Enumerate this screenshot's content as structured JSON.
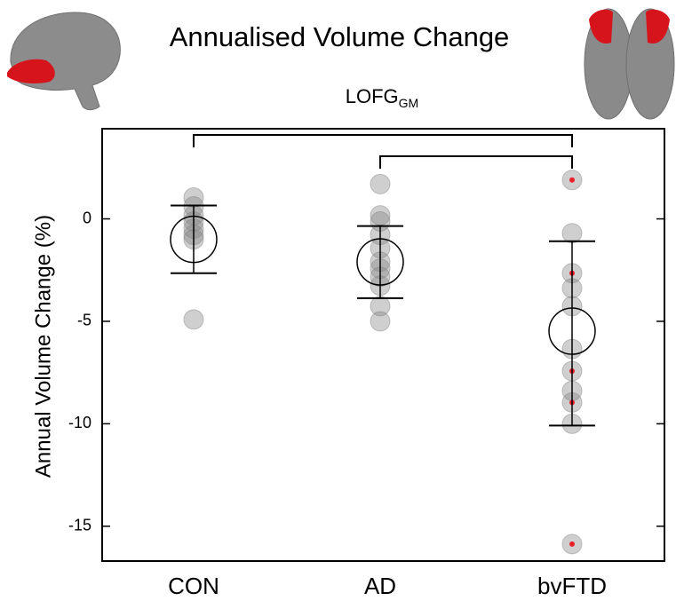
{
  "chart_data": {
    "type": "strip",
    "title": "Annualised Volume Change",
    "subtitle": {
      "text": "LOFG",
      "subscript": "GM"
    },
    "y_label": "Annual Volume Change (%)",
    "categories": [
      "CON",
      "AD",
      "bvFTD"
    ],
    "points": [
      [
        1.04,
        0.61,
        0.17,
        -0.13,
        -0.48,
        -0.78,
        -1.0,
        -4.91
      ],
      [
        1.7,
        0.17,
        -0.13,
        -0.78,
        -1.43,
        -2.09,
        -2.43,
        -2.83,
        -3.26,
        -4.26,
        -5.0
      ],
      [
        1.9,
        -0.7,
        -2.65,
        -3.39,
        -4.26,
        -6.35,
        -7.43,
        -8.39,
        -8.96,
        -10.0,
        -15.87
      ]
    ],
    "highlight": [
      [
        false,
        false,
        false,
        false,
        false,
        false,
        false,
        false
      ],
      [
        false,
        false,
        false,
        false,
        false,
        false,
        false,
        false,
        false,
        false,
        false
      ],
      [
        true,
        false,
        true,
        false,
        false,
        false,
        true,
        false,
        true,
        false,
        true
      ]
    ],
    "means": [
      -1.0,
      -2.1,
      -5.48
    ],
    "upper": [
      0.65,
      -0.35,
      -1.09
    ],
    "lower": [
      -2.65,
      -3.87,
      -10.09
    ],
    "point_color": "#808080",
    "highlight_color": "#e8202a",
    "ylim": [
      -16.7,
      4.4
    ],
    "yticks": [
      0,
      -5,
      -10,
      -15
    ],
    "comparisons": [
      [
        0,
        2
      ],
      [
        1,
        2
      ]
    ]
  }
}
